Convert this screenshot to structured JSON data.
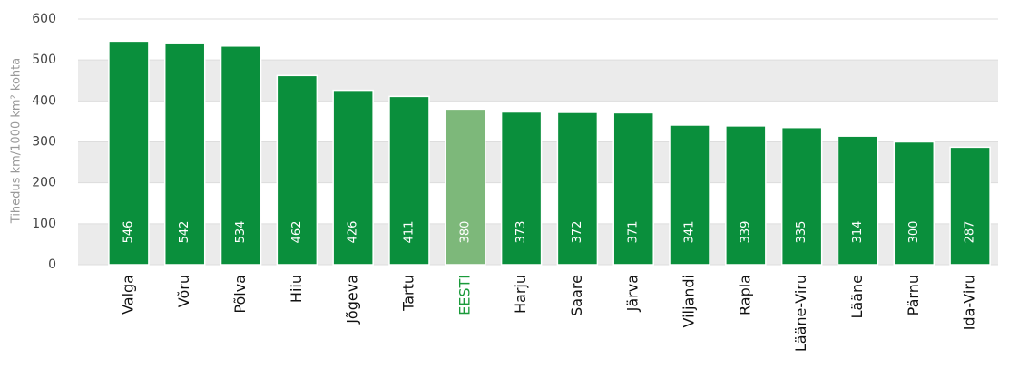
{
  "chart_data": {
    "type": "bar",
    "y_label": "Tihedus km/1000 km² kohta",
    "categories": [
      "Valga",
      "Võru",
      "Põlva",
      "Hiiu",
      "Jõgeva",
      "Tartu",
      "EESTI",
      "Harju",
      "Saare",
      "Järva",
      "Viljandi",
      "Rapla",
      "Lääne-Viru",
      "Lääne",
      "Pärnu",
      "Ida-Viru"
    ],
    "values": [
      546,
      542,
      534,
      462,
      426,
      411,
      380,
      373,
      372,
      371,
      341,
      339,
      335,
      314,
      300,
      287
    ],
    "color": "#0a8f3c",
    "highlight_index": 6,
    "highlight_color": "#7db87a",
    "highlight_label_color": "#1a9a3a",
    "ylim": [
      0,
      600
    ],
    "yticks": [
      0,
      100,
      200,
      300,
      400,
      500,
      600
    ],
    "grid": "bands"
  }
}
